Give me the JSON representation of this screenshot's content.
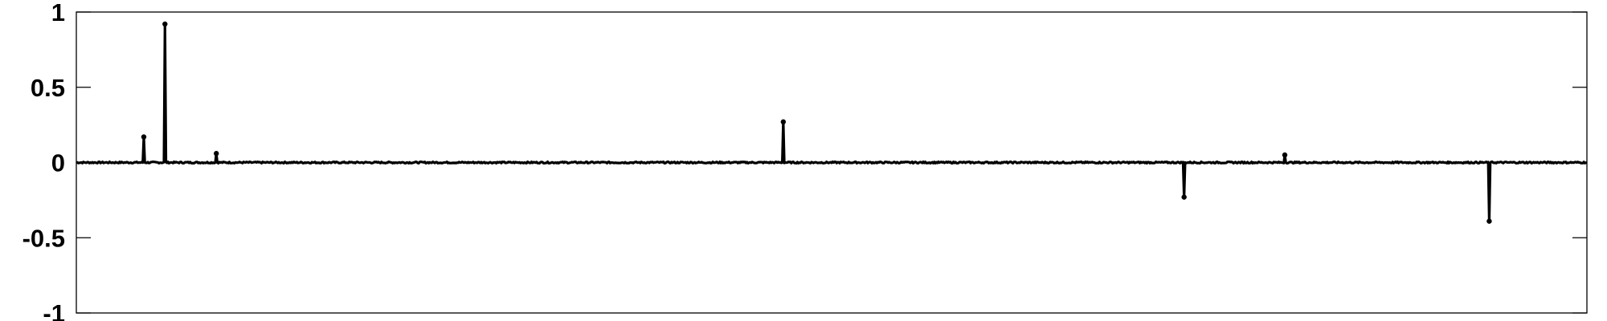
{
  "chart_data": {
    "type": "line",
    "title": "",
    "xlabel": "",
    "ylabel": "",
    "ylim": [
      -1,
      1
    ],
    "xlim": [
      0,
      1500
    ],
    "yticks": [
      1,
      0.5,
      0,
      -0.5,
      -1
    ],
    "ytick_labels": [
      "1",
      "0.5",
      "0",
      "-0.5",
      "-1"
    ],
    "xtick_labels": [],
    "grid": false,
    "noise_amplitude": 0.005,
    "series": [
      {
        "color": "#000000",
        "spikes": [
          {
            "x": 67,
            "y": 0.17
          },
          {
            "x": 88,
            "y": 0.92
          },
          {
            "x": 139,
            "y": 0.06
          },
          {
            "x": 702,
            "y": 0.27
          },
          {
            "x": 1100,
            "y": -0.23
          },
          {
            "x": 1200,
            "y": 0.05
          },
          {
            "x": 1403,
            "y": -0.39
          }
        ]
      }
    ]
  }
}
